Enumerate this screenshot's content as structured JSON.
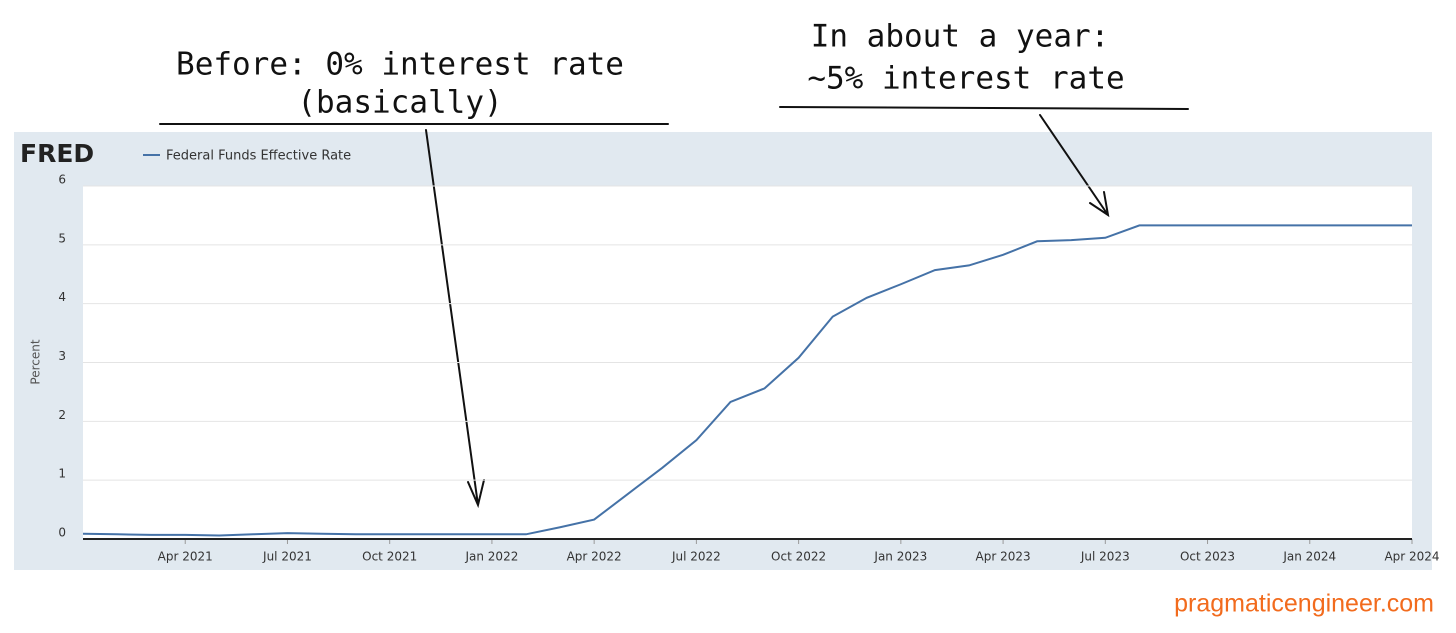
{
  "chart_data": {
    "type": "line",
    "logo": "FRED",
    "ylabel": "Percent",
    "annotations": [
      "Before: 0% interest rate",
      "(basically)",
      "In about a year:",
      "~5% interest rate"
    ],
    "watermark": "pragmaticengineer.com",
    "x": [
      "2021-01",
      "2021-02",
      "2021-03",
      "2021-04",
      "2021-05",
      "2021-06",
      "2021-07",
      "2021-08",
      "2021-09",
      "2021-10",
      "2021-11",
      "2021-12",
      "2022-01",
      "2022-02",
      "2022-03",
      "2022-04",
      "2022-05",
      "2022-06",
      "2022-07",
      "2022-08",
      "2022-09",
      "2022-10",
      "2022-11",
      "2022-12",
      "2023-01",
      "2023-02",
      "2023-03",
      "2023-04",
      "2023-05",
      "2023-06",
      "2023-07",
      "2023-08",
      "2023-09",
      "2023-10",
      "2023-11",
      "2023-12",
      "2024-01",
      "2024-02",
      "2024-03",
      "2024-04"
    ],
    "series": [
      {
        "name": "Federal Funds Effective Rate",
        "color": "#4572a7",
        "values": [
          0.09,
          0.08,
          0.07,
          0.07,
          0.06,
          0.08,
          0.1,
          0.09,
          0.08,
          0.08,
          0.08,
          0.08,
          0.08,
          0.08,
          0.2,
          0.33,
          0.77,
          1.21,
          1.68,
          2.33,
          2.56,
          3.08,
          3.78,
          4.1,
          4.33,
          4.57,
          4.65,
          4.83,
          5.06,
          5.08,
          5.12,
          5.33,
          5.33,
          5.33,
          5.33,
          5.33,
          5.33,
          5.33,
          5.33,
          5.33
        ]
      }
    ],
    "xlim": [
      "2021-01",
      "2024-04"
    ],
    "xticks": [
      {
        "value": "2021-04",
        "label": "Apr 2021"
      },
      {
        "value": "2021-07",
        "label": "Jul 2021"
      },
      {
        "value": "2021-10",
        "label": "Oct 2021"
      },
      {
        "value": "2022-01",
        "label": "Jan 2022"
      },
      {
        "value": "2022-04",
        "label": "Apr 2022"
      },
      {
        "value": "2022-07",
        "label": "Jul 2022"
      },
      {
        "value": "2022-10",
        "label": "Oct 2022"
      },
      {
        "value": "2023-01",
        "label": "Jan 2023"
      },
      {
        "value": "2023-04",
        "label": "Apr 2023"
      },
      {
        "value": "2023-07",
        "label": "Jul 2023"
      },
      {
        "value": "2023-10",
        "label": "Oct 2023"
      },
      {
        "value": "2024-01",
        "label": "Jan 2024"
      },
      {
        "value": "2024-04",
        "label": "Apr 2024"
      }
    ],
    "ylim": [
      0,
      6
    ],
    "yticks": [
      0,
      1,
      2,
      3,
      4,
      5,
      6
    ],
    "grid": true
  }
}
